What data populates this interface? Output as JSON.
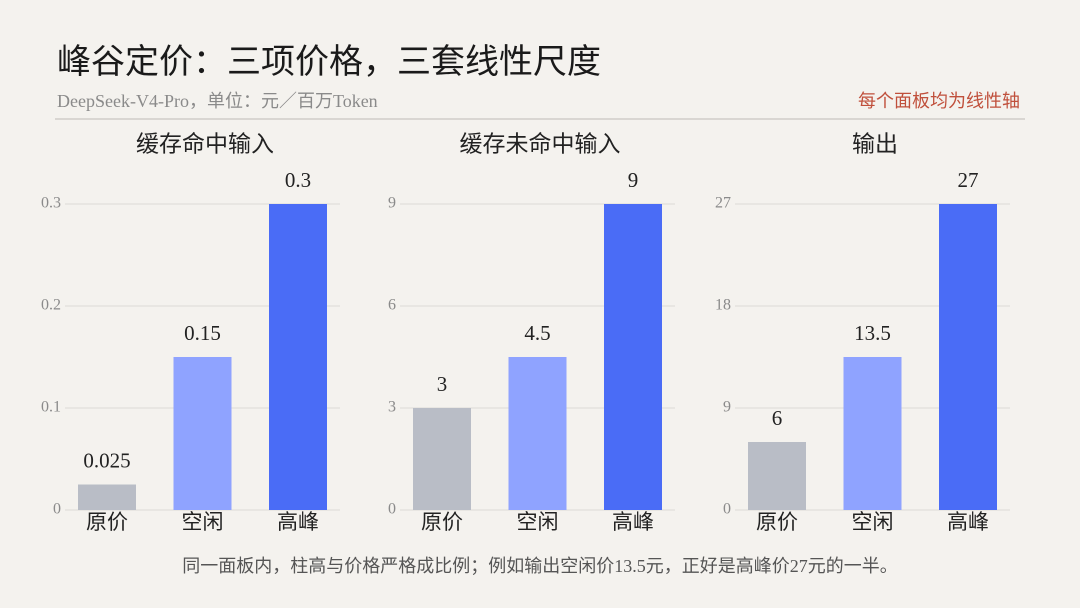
{
  "header": {
    "title": "峰谷定价：三项价格，三套线性尺度",
    "subtitle": "DeepSeek-V4-Pro，单位：元／百万Token",
    "note": "每个面板均为线性轴"
  },
  "footer": "同一面板内，柱高与价格严格成比例；例如输出空闲价13.5元，正好是高峰价27元的一半。",
  "chart_data": [
    {
      "type": "bar",
      "title": "缓存命中输入",
      "categories": [
        "原价",
        "空闲",
        "高峰"
      ],
      "values": [
        0.025,
        0.15,
        0.3
      ],
      "colors": [
        "#b9bdc6",
        "#8fa3ff",
        "#4a6cf6"
      ],
      "ylim": [
        0,
        0.3
      ],
      "yticks": [
        0,
        0.1,
        0.2,
        0.3
      ],
      "grid": true
    },
    {
      "type": "bar",
      "title": "缓存未命中输入",
      "categories": [
        "原价",
        "空闲",
        "高峰"
      ],
      "values": [
        3,
        4.5,
        9
      ],
      "colors": [
        "#b9bdc6",
        "#8fa3ff",
        "#4a6cf6"
      ],
      "ylim": [
        0,
        9
      ],
      "yticks": [
        0,
        3,
        6,
        9
      ],
      "grid": true
    },
    {
      "type": "bar",
      "title": "输出",
      "categories": [
        "原价",
        "空闲",
        "高峰"
      ],
      "values": [
        6,
        13.5,
        27
      ],
      "colors": [
        "#b9bdc6",
        "#8fa3ff",
        "#4a6cf6"
      ],
      "ylim": [
        0,
        27
      ],
      "yticks": [
        0,
        9,
        18,
        27
      ],
      "grid": true
    }
  ]
}
